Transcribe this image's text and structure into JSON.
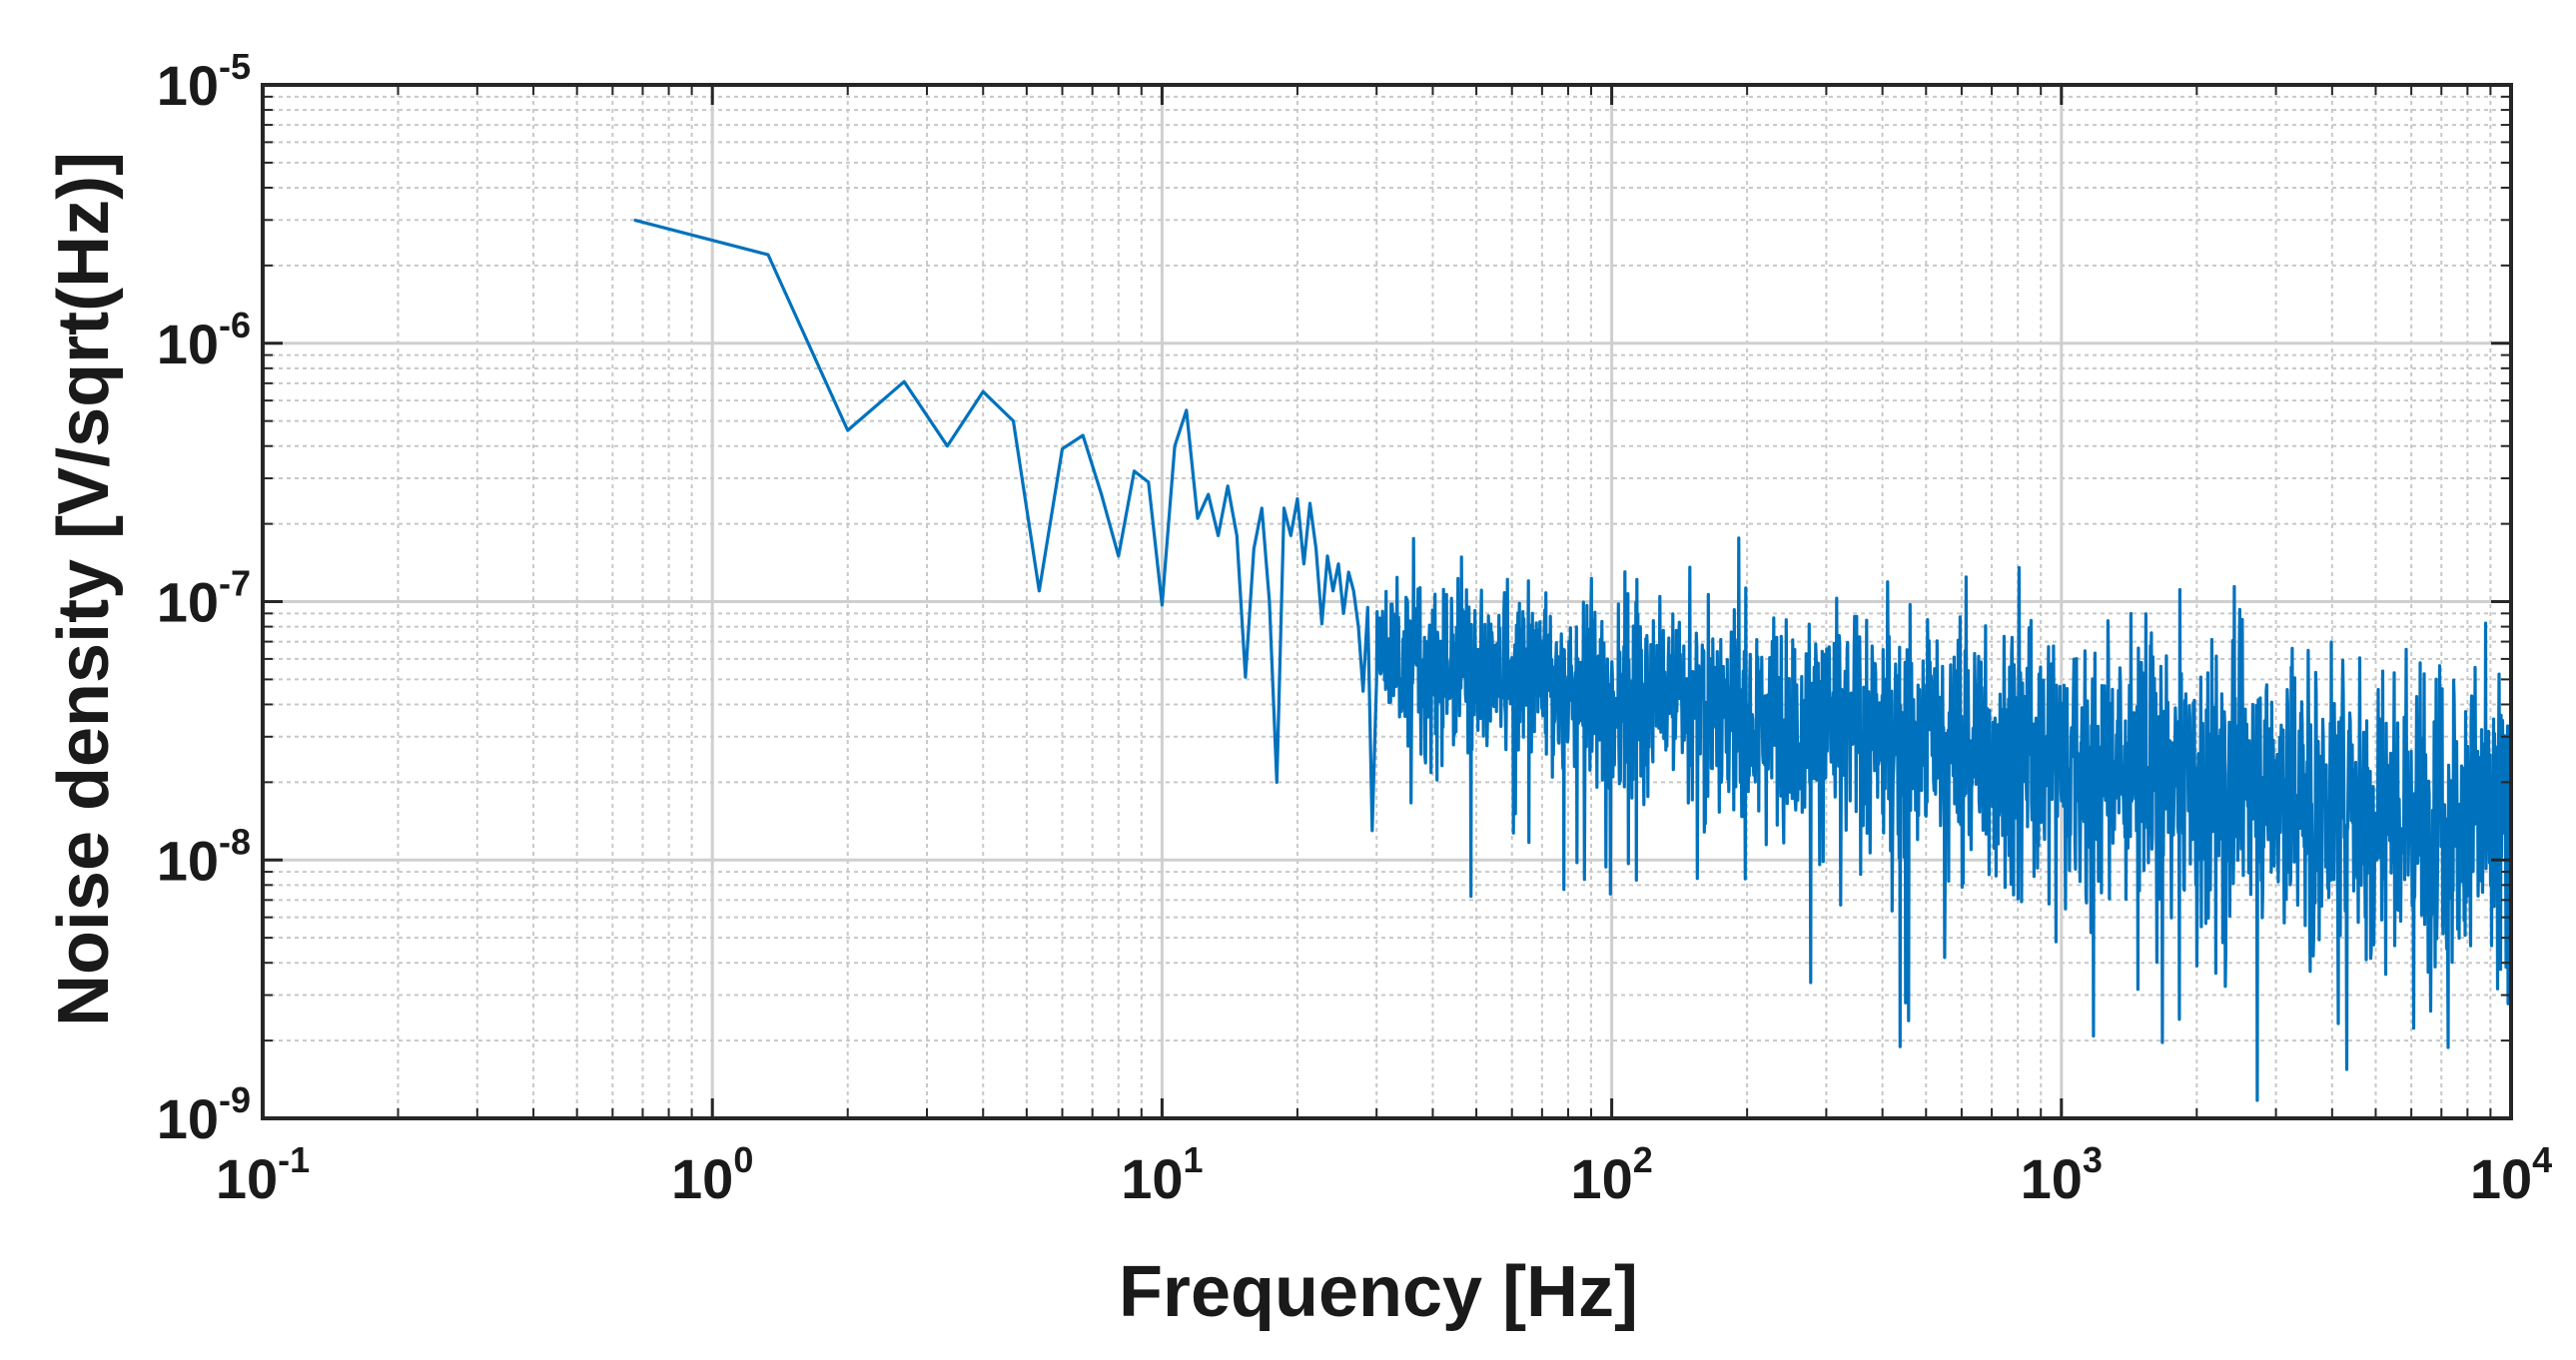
{
  "chart_data": {
    "type": "line",
    "title": "",
    "xlabel": "Frequency [Hz]",
    "ylabel": "Noise density [V/sqrt(Hz)]",
    "xscale": "log",
    "yscale": "log",
    "xlim": [
      0.1,
      10000
    ],
    "ylim": [
      1e-09,
      1e-05
    ],
    "grid": true,
    "minor_grid": true,
    "x_ticks": [
      {
        "value": 0.1,
        "base": "10",
        "exp": "-1"
      },
      {
        "value": 1,
        "base": "10",
        "exp": "0"
      },
      {
        "value": 10,
        "base": "10",
        "exp": "1"
      },
      {
        "value": 100,
        "base": "10",
        "exp": "2"
      },
      {
        "value": 1000,
        "base": "10",
        "exp": "3"
      },
      {
        "value": 10000,
        "base": "10",
        "exp": "4"
      }
    ],
    "y_ticks": [
      {
        "value": 1e-09,
        "base": "10",
        "exp": "-9"
      },
      {
        "value": 1e-08,
        "base": "10",
        "exp": "-8"
      },
      {
        "value": 1e-07,
        "base": "10",
        "exp": "-7"
      },
      {
        "value": 1e-06,
        "base": "10",
        "exp": "-6"
      },
      {
        "value": 1e-05,
        "base": "10",
        "exp": "-5"
      }
    ],
    "series": [
      {
        "name": "Noise density",
        "color": "#0072BD",
        "x": [
          0.67,
          1.33,
          2.0,
          2.67,
          3.33,
          4.0,
          4.67,
          5.33,
          6.0,
          6.67,
          7.33,
          8.0,
          8.67,
          9.33,
          10.0,
          10.67,
          11.33,
          12.0,
          12.67,
          13.33,
          14.0,
          14.67,
          15.33,
          16.0,
          16.67,
          17.33,
          18.0,
          18.67,
          19.33,
          20.0,
          20.67,
          21.33,
          22.0,
          22.67,
          23.33,
          24.0,
          24.67,
          25.33,
          26.0,
          26.67,
          27.33,
          28.0,
          28.67,
          29.33,
          30.0
        ],
        "y": [
          3e-06,
          2.2e-06,
          4.6e-07,
          7.1e-07,
          4e-07,
          6.5e-07,
          5e-07,
          1.1e-07,
          3.9e-07,
          4.4e-07,
          2.6e-07,
          1.5e-07,
          3.2e-07,
          2.9e-07,
          9.7e-08,
          4e-07,
          5.5e-07,
          2.1e-07,
          2.6e-07,
          1.8e-07,
          2.8e-07,
          1.8e-07,
          5.1e-08,
          1.6e-07,
          2.3e-07,
          1e-07,
          2e-08,
          2.3e-07,
          1.8e-07,
          2.5e-07,
          1.4e-07,
          2.4e-07,
          1.6e-07,
          8.2e-08,
          1.5e-07,
          1.1e-07,
          1.4e-07,
          9e-08,
          1.3e-07,
          1.1e-07,
          8e-08,
          4.5e-08,
          9.5e-08,
          1.3e-08,
          5e-08
        ],
        "noise_region": {
          "f_start": 30,
          "f_end": 10000,
          "points_per_decade": 900,
          "median_start": 6e-08,
          "median_end": 1.4e-08,
          "spread_decades_start": 0.25,
          "spread_decades_end": 0.55,
          "max_peak": 1.8e-07,
          "min_dip": 1e-09
        }
      }
    ]
  }
}
